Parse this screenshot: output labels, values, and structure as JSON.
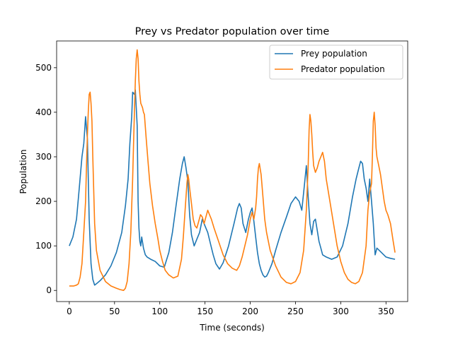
{
  "chart_data": {
    "type": "line",
    "title": "Prey vs Predator population over time",
    "xlabel": "Time (seconds)",
    "ylabel": "Population",
    "xlim": [
      -14,
      374
    ],
    "ylim": [
      -25,
      560
    ],
    "xticks": [
      0,
      50,
      100,
      150,
      200,
      250,
      300,
      350
    ],
    "yticks": [
      0,
      100,
      200,
      300,
      400,
      500
    ],
    "grid": false,
    "legend_position": "top-right",
    "series": [
      {
        "name": "Prey population",
        "color": "#1f77b4",
        "x": [
          0,
          4,
          8,
          11,
          14,
          16,
          18,
          20,
          22,
          24,
          26,
          28,
          30,
          34,
          40,
          46,
          52,
          58,
          62,
          65,
          67,
          69,
          70,
          72,
          73,
          75,
          76,
          77,
          78,
          79,
          80,
          82,
          84,
          86,
          90,
          95,
          100,
          105,
          110,
          114,
          118,
          122,
          125,
          127,
          129,
          131,
          133,
          135,
          138,
          141,
          144,
          147,
          150,
          153,
          156,
          159,
          162,
          166,
          170,
          176,
          182,
          186,
          188,
          190,
          192,
          195,
          198,
          200,
          202,
          204,
          206,
          208,
          210,
          212,
          214,
          216,
          218,
          220,
          224,
          228,
          234,
          240,
          245,
          250,
          254,
          257,
          260,
          262,
          264,
          266,
          268,
          270,
          272,
          274,
          276,
          278,
          280,
          284,
          290,
          296,
          302,
          308,
          313,
          317,
          320,
          322,
          324,
          326,
          328,
          330,
          332,
          334,
          336,
          338,
          340,
          345,
          350,
          355,
          360
        ],
        "values": [
          100,
          120,
          160,
          230,
          300,
          330,
          390,
          340,
          160,
          60,
          25,
          12,
          15,
          22,
          35,
          55,
          85,
          130,
          190,
          250,
          330,
          390,
          445,
          440,
          450,
          370,
          200,
          140,
          110,
          100,
          120,
          95,
          80,
          75,
          70,
          65,
          55,
          52,
          85,
          130,
          190,
          250,
          285,
          300,
          275,
          245,
          170,
          125,
          100,
          115,
          130,
          160,
          145,
          130,
          105,
          80,
          60,
          48,
          62,
          100,
          150,
          185,
          195,
          185,
          150,
          130,
          160,
          175,
          185,
          155,
          120,
          85,
          60,
          45,
          35,
          30,
          32,
          40,
          60,
          90,
          130,
          165,
          195,
          210,
          200,
          180,
          240,
          280,
          210,
          150,
          125,
          155,
          160,
          135,
          110,
          95,
          80,
          75,
          70,
          75,
          100,
          150,
          210,
          250,
          275,
          290,
          285,
          250,
          230,
          200,
          250,
          200,
          150,
          80,
          95,
          85,
          75,
          72,
          70
        ]
      },
      {
        "name": "Predator population",
        "color": "#ff7f0e",
        "x": [
          0,
          5,
          8,
          10,
          12,
          14,
          16,
          18,
          19,
          20,
          21,
          22,
          23,
          24,
          25,
          26,
          28,
          30,
          34,
          40,
          46,
          52,
          56,
          60,
          62,
          64,
          66,
          68,
          70,
          71,
          72,
          73,
          74,
          75,
          76,
          77,
          78,
          79,
          80,
          81,
          82,
          83,
          85,
          87,
          89,
          92,
          95,
          98,
          100,
          103,
          106,
          110,
          115,
          120,
          124,
          126,
          128,
          130,
          131,
          132,
          133,
          135,
          137,
          139,
          141,
          143,
          145,
          147,
          149,
          151,
          153,
          155,
          157,
          160,
          165,
          170,
          175,
          180,
          185,
          188,
          191,
          194,
          197,
          200,
          202,
          204,
          206,
          207,
          208,
          209,
          210,
          212,
          214,
          216,
          218,
          222,
          228,
          234,
          240,
          245,
          250,
          255,
          259,
          262,
          264,
          265,
          266,
          267,
          268,
          269,
          270,
          272,
          274,
          276,
          278,
          280,
          282,
          284,
          288,
          292,
          296,
          300,
          304,
          308,
          312,
          316,
          320,
          324,
          328,
          330,
          332,
          334,
          335,
          336,
          337,
          338,
          339,
          340,
          342,
          344,
          346,
          348,
          350,
          352,
          355,
          358,
          360
        ],
        "values": [
          10,
          10,
          12,
          15,
          30,
          60,
          130,
          200,
          280,
          350,
          400,
          440,
          445,
          420,
          380,
          300,
          150,
          90,
          45,
          20,
          10,
          5,
          2,
          0,
          5,
          20,
          60,
          130,
          250,
          330,
          400,
          470,
          520,
          540,
          520,
          470,
          440,
          420,
          415,
          410,
          400,
          395,
          340,
          290,
          240,
          190,
          150,
          115,
          90,
          65,
          45,
          35,
          28,
          32,
          70,
          120,
          180,
          240,
          260,
          250,
          230,
          195,
          160,
          145,
          140,
          155,
          170,
          165,
          150,
          165,
          180,
          170,
          160,
          140,
          110,
          80,
          60,
          50,
          45,
          55,
          75,
          100,
          125,
          160,
          175,
          160,
          185,
          210,
          250,
          275,
          285,
          260,
          210,
          160,
          130,
          90,
          55,
          30,
          18,
          15,
          20,
          40,
          90,
          180,
          280,
          360,
          395,
          380,
          350,
          310,
          280,
          265,
          275,
          290,
          300,
          310,
          290,
          250,
          200,
          150,
          100,
          65,
          40,
          25,
          18,
          15,
          20,
          40,
          100,
          180,
          220,
          240,
          300,
          380,
          400,
          370,
          320,
          300,
          280,
          260,
          230,
          200,
          180,
          170,
          150,
          110,
          85
        ]
      }
    ]
  }
}
